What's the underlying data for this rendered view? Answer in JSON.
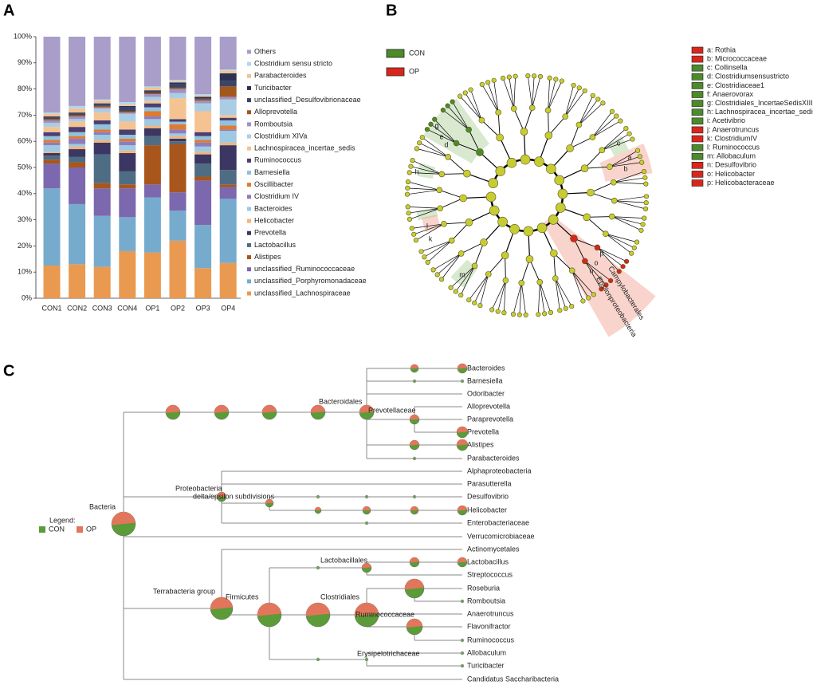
{
  "panel_labels": [
    "A",
    "B",
    "C"
  ],
  "chart_data": {
    "type": "stacked-bar",
    "categories": [
      "CON1",
      "CON2",
      "CON3",
      "CON4",
      "OP1",
      "OP2",
      "OP3",
      "OP4"
    ],
    "ylim": [
      0,
      100
    ],
    "yticks": [
      {
        "value": 0,
        "label": "0%"
      },
      {
        "value": 10,
        "label": "10%"
      },
      {
        "value": 20,
        "label": "20%"
      },
      {
        "value": 30,
        "label": "30%"
      },
      {
        "value": 40,
        "label": "40%"
      },
      {
        "value": 50,
        "label": "50%"
      },
      {
        "value": 60,
        "label": "60%"
      },
      {
        "value": 70,
        "label": "70%"
      },
      {
        "value": 80,
        "label": "80%"
      },
      {
        "value": 90,
        "label": "90%"
      },
      {
        "value": 100,
        "label": "100%"
      }
    ],
    "series": [
      {
        "name": "Others",
        "color": "#a99dc9",
        "values": [
          29,
          26.5,
          24,
          25,
          19,
          16.5,
          22,
          12.5
        ]
      },
      {
        "name": "Clostridium sensu stricto",
        "color": "#b5d6eb",
        "values": [
          0.5,
          1,
          0.5,
          1,
          0.5,
          0.5,
          0.5,
          0.5
        ]
      },
      {
        "name": "Parabacteroides",
        "color": "#f3c290",
        "values": [
          1,
          1.5,
          1,
          0.5,
          1,
          0.5,
          0.5,
          1
        ]
      },
      {
        "name": "Turicibacter",
        "color": "#2b3152",
        "values": [
          0.5,
          0.5,
          0.5,
          0.5,
          0.5,
          0.5,
          0.5,
          3
        ]
      },
      {
        "name": "unclassified_Desulfovibrionaceae",
        "color": "#3c4466",
        "values": [
          0.5,
          0.5,
          0.5,
          1.5,
          0.5,
          1.5,
          0.5,
          2
        ]
      },
      {
        "name": "Alloprevotella",
        "color": "#a2571e",
        "values": [
          0.5,
          0.5,
          0.5,
          0.5,
          0.5,
          0.5,
          0.5,
          4
        ]
      },
      {
        "name": "Romboutsia",
        "color": "#9f92c4",
        "values": [
          1,
          1,
          0.5,
          0.5,
          1,
          1.5,
          1,
          1
        ]
      },
      {
        "name": "Clostridium XIVa",
        "color": "#abcde4",
        "values": [
          1.5,
          1,
          1.5,
          3,
          1.5,
          2,
          3,
          6
        ]
      },
      {
        "name": "Lachnospiracea_incertae_sedis",
        "color": "#f5c391",
        "values": [
          2,
          2,
          3,
          3,
          1,
          8,
          8,
          1
        ]
      },
      {
        "name": "Ruminococcus",
        "color": "#4b3f70",
        "values": [
          1.5,
          2,
          1.5,
          2,
          1.5,
          1,
          1.5,
          1
        ]
      },
      {
        "name": "Barnesiella",
        "color": "#90c1dd",
        "values": [
          1.5,
          1.5,
          2,
          1.5,
          1.5,
          1,
          1.5,
          2
        ]
      },
      {
        "name": "Oscillibacter",
        "color": "#e07a30",
        "values": [
          1,
          1,
          1,
          1,
          2,
          2,
          1,
          1.5
        ]
      },
      {
        "name": "Clostridium IV",
        "color": "#8d7dbd",
        "values": [
          1,
          2,
          1,
          1.5,
          1,
          1.5,
          1.5,
          0.5
        ]
      },
      {
        "name": "Bacteroides",
        "color": "#9dc9e3",
        "values": [
          2.5,
          1,
          2,
          2,
          2.5,
          1,
          2,
          4.5
        ]
      },
      {
        "name": "Helicobacter",
        "color": "#f1b47c",
        "values": [
          0.5,
          1,
          1,
          1,
          1,
          1,
          1,
          1
        ]
      },
      {
        "name": "Prevotella",
        "color": "#3c3762",
        "values": [
          1,
          3,
          4.5,
          7,
          3,
          1,
          3.5,
          9.5
        ]
      },
      {
        "name": "Lactobacillus",
        "color": "#4e6d85",
        "values": [
          1.5,
          2,
          11,
          5,
          3.5,
          1,
          5,
          5.5
        ]
      },
      {
        "name": "Alistipes",
        "color": "#a9561c",
        "values": [
          1.5,
          2,
          2,
          1.5,
          15,
          18.5,
          1.5,
          1
        ]
      },
      {
        "name": "unclassified_Ruminococcaceae",
        "color": "#7c68ae",
        "values": [
          9.5,
          14,
          10.5,
          11,
          5,
          7,
          17,
          4.5
        ]
      },
      {
        "name": "unclassified_Porphyromonadaceae",
        "color": "#76abce",
        "values": [
          29.5,
          23,
          19.5,
          13,
          21,
          11.5,
          16.5,
          24.5
        ]
      },
      {
        "name": "unclassified_Lachnospiraceae",
        "color": "#e99a50",
        "values": [
          12.5,
          13,
          12,
          18,
          17.5,
          22,
          11.5,
          13.5
        ]
      }
    ]
  },
  "cladogram": {
    "legend": [
      "CON",
      "OP"
    ],
    "taxa": [
      "a: Rothia",
      "b: Micrococcaceae",
      "c: Collinsella",
      "d: Clostridiumsensustricto",
      "e: Clostridiaceae1",
      "f: Anaerovorax",
      "g: Clostridiales_IncertaeSedisXIII",
      "h: Lachnospiracea_incertae_sedis",
      "i: Acetivibrio",
      "j: Anaerotruncus",
      "k: ClostridiumIV",
      "l: Ruminococcus",
      "m: Allobaculum",
      "n: Desulfovibrio",
      "o: Helicobacter",
      "p: Helicobacteraceae"
    ],
    "sector_labels": [
      "g",
      "e",
      "d",
      "h",
      "c",
      "a",
      "b",
      "k",
      "l",
      "m",
      "p",
      "o",
      "n"
    ],
    "annotations": [
      "Campylobacterales",
      "Epsilonproteobacteria"
    ]
  },
  "tree": {
    "legend_title": "Legend:",
    "legend": [
      "CON",
      "OP"
    ],
    "clades": [
      "Bacteria",
      "Bacteroidales",
      "Prevotellaceae",
      "Proteobacteria",
      "delta/epsilon subdivisions",
      "Terrabacteria group",
      "Firmicutes",
      "Lactobacillales",
      "Clostridiales",
      "Ruminococcaceae",
      "Erysipelotrichaceae"
    ],
    "leaves": [
      "Bacteroides",
      "Barnesiella",
      "Odoribacter",
      "Alloprevotella",
      "Paraprevotella",
      "Prevotella",
      "Alistipes",
      "Parabacteroides",
      "Alphaproteobacteria",
      "Parasutterella",
      "Desulfovibrio",
      "Helicobacter",
      "Enterobacteriaceae",
      "Verrucomicrobiaceae",
      "Actinomycetales",
      "Lactobacillus",
      "Streptococcus",
      "Roseburia",
      "Romboutsia",
      "Anaerotruncus",
      "Flavonifractor",
      "Ruminococcus",
      "Allobaculum",
      "Turicibacter",
      "Candidatus Saccharibacteria"
    ]
  }
}
